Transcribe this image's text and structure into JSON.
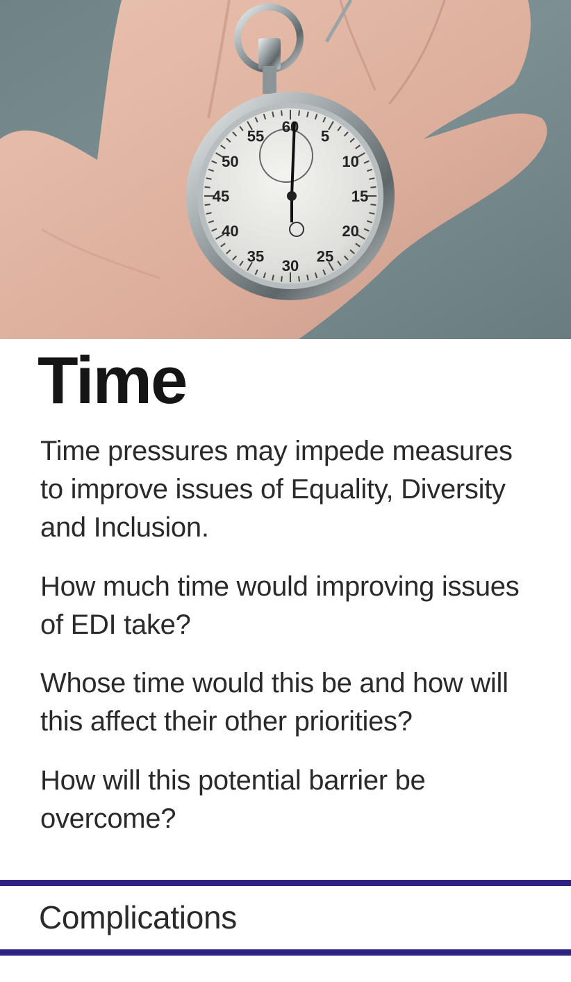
{
  "card": {
    "image_subject": "stopwatch-in-hand",
    "stopwatch": {
      "dial_numbers": [
        "60",
        "5",
        "10",
        "15",
        "20",
        "25",
        "30",
        "35",
        "40",
        "45",
        "50",
        "55"
      ]
    },
    "title": "Time",
    "paragraphs": [
      "Time pressures may impede measures to improve issues of Equality, Diversity and Inclusion.",
      "How much time would improving issues of EDI take?",
      "Whose time would this be and how will this affect their other priorities?",
      "How will  this potential barrier be overcome?"
    ],
    "category": "Complications"
  },
  "colors": {
    "rule": "#2e2383",
    "title_text": "#151515",
    "body_text": "#2a2a2a"
  }
}
